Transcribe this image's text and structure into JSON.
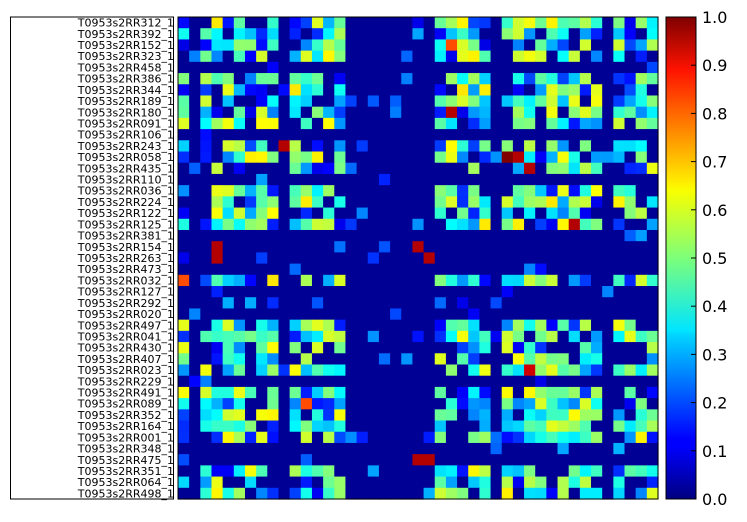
{
  "chart_data": {
    "type": "heatmap",
    "row_labels": [
      "T0953s2RR312_1",
      "T0953s2RR392_1",
      "T0953s2RR152_1",
      "T0953s2RR323_1",
      "T0953s2RR458_1",
      "T0953s2RR386_1",
      "T0953s2RR344_1",
      "T0953s2RR189_1",
      "T0953s2RR180_1",
      "T0953s2RR091_1",
      "T0953s2RR106_1",
      "T0953s2RR243_1",
      "T0953s2RR058_1",
      "T0953s2RR435_1",
      "T0953s2RR110_1",
      "T0953s2RR036_1",
      "T0953s2RR224_1",
      "T0953s2RR122_1",
      "T0953s2RR125_1",
      "T0953s2RR381_1",
      "T0953s2RR154_1",
      "T0953s2RR263_1",
      "T0953s2RR473_1",
      "T0953s2RR032_1",
      "T0953s2RR127_1",
      "T0953s2RR292_1",
      "T0953s2RR020_1",
      "T0953s2RR497_1",
      "T0953s2RR041_1",
      "T0953s2RR430_1",
      "T0953s2RR407_1",
      "T0953s2RR023_1",
      "T0953s2RR229_1",
      "T0953s2RR491_1",
      "T0953s2RR089_1",
      "T0953s2RR352_1",
      "T0953s2RR164_1",
      "T0953s2RR001_1",
      "T0953s2RR348_1",
      "T0953s2RR475_1",
      "T0953s2RR351_1",
      "T0953s2RR064_1",
      "T0953s2RR498_1"
    ],
    "column_count": 43,
    "value_range": [
      0.0,
      1.0
    ],
    "colormap": "jet",
    "colorbar": {
      "ticks": [
        "0.0",
        "0.1",
        "0.2",
        "0.3",
        "0.4",
        "0.5",
        "0.6",
        "0.7",
        "0.8",
        "0.9",
        "1.0"
      ]
    },
    "special_pairs": [
      {
        "row": 12,
        "col": 29,
        "value": 1.0
      },
      {
        "row": 12,
        "col": 30,
        "value": 0.95
      },
      {
        "row": 13,
        "col": 31,
        "value": 0.95
      },
      {
        "row": 8,
        "col": 24,
        "value": 0.95
      },
      {
        "row": 18,
        "col": 35,
        "value": 0.95
      },
      {
        "row": 31,
        "col": 31,
        "value": 0.92
      },
      {
        "row": 23,
        "col": 0,
        "value": 0.8
      },
      {
        "row": 2,
        "col": 24,
        "value": 0.8
      },
      {
        "row": 11,
        "col": 9,
        "value": 0.95
      },
      {
        "row": 20,
        "col": 3,
        "value": 0.95
      },
      {
        "row": 21,
        "col": 3,
        "value": 0.95
      },
      {
        "row": 20,
        "col": 21,
        "value": 0.95
      },
      {
        "row": 21,
        "col": 22,
        "value": 0.95
      },
      {
        "row": 39,
        "col": 21,
        "value": 0.95
      },
      {
        "row": 39,
        "col": 22,
        "value": 0.95
      },
      {
        "row": 34,
        "col": 11,
        "value": 0.8
      }
    ]
  }
}
